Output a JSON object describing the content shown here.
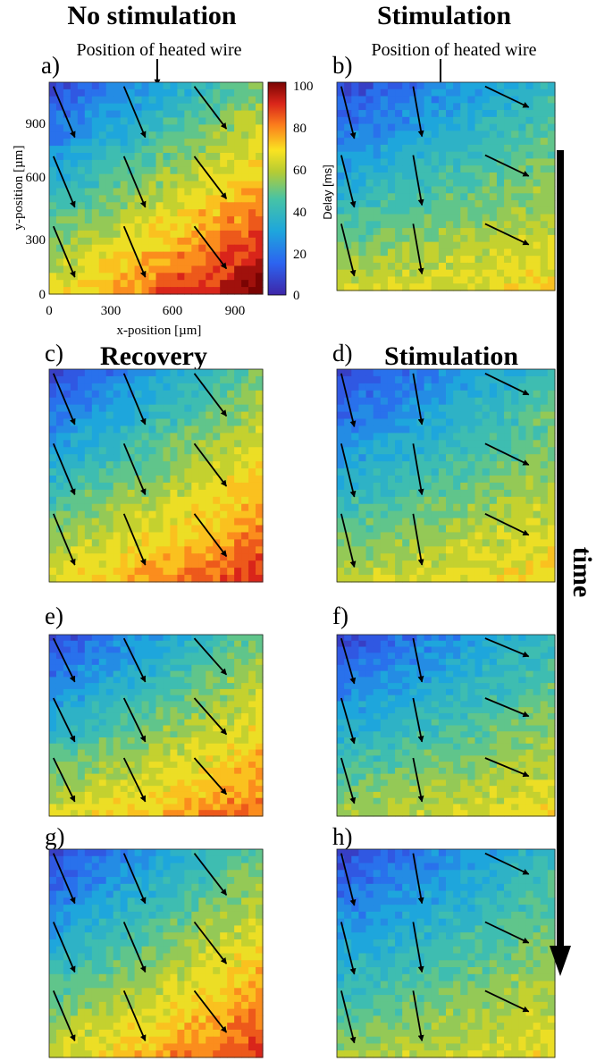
{
  "headers": {
    "no_stimulation": "No stimulation",
    "stimulation": "Stimulation"
  },
  "panel_labels": [
    "a)",
    "b)",
    "c)",
    "d)",
    "e)",
    "f)",
    "g)",
    "h)"
  ],
  "panel_titles": {
    "c": "Recovery",
    "d": "Stimulation"
  },
  "wire_label": "Position of heated wire",
  "time_label": "time",
  "colorbar_label": "Delay [ms]",
  "colors": {
    "low": "#3e26a8",
    "high": "#7a0403",
    "arrow": "#000000"
  },
  "chart_data": [
    {
      "type": "heatmap",
      "panel": "a",
      "condition": "No stimulation",
      "title": "",
      "xlabel": "x-position [µm]",
      "ylabel": "y-position [µm]",
      "xlim": [
        0,
        1100
      ],
      "ylim": [
        0,
        1100
      ],
      "xticks": [
        0,
        300,
        600,
        900
      ],
      "yticks": [
        0,
        300,
        600,
        900
      ],
      "clim": [
        0,
        100
      ],
      "colorbar_ticks": [
        0,
        20,
        40,
        60,
        80,
        100
      ],
      "grid": false,
      "delay_gradient_ms": {
        "top_left": 8,
        "top_right": 50,
        "bottom_left": 65,
        "bottom_right": 100
      },
      "wire_position_x": 520
    },
    {
      "type": "heatmap",
      "panel": "b",
      "condition": "Stimulation",
      "title": "",
      "clim": [
        0,
        100
      ],
      "delay_gradient_ms": {
        "top_left": 8,
        "top_right": 40,
        "bottom_left": 60,
        "bottom_right": 68
      }
    },
    {
      "type": "heatmap",
      "panel": "c",
      "condition": "Recovery",
      "title": "Recovery",
      "clim": [
        0,
        100
      ],
      "delay_gradient_ms": {
        "top_left": 8,
        "top_right": 50,
        "bottom_left": 65,
        "bottom_right": 88
      }
    },
    {
      "type": "heatmap",
      "panel": "d",
      "condition": "Stimulation",
      "title": "Stimulation",
      "clim": [
        0,
        100
      ],
      "delay_gradient_ms": {
        "top_left": 8,
        "top_right": 42,
        "bottom_left": 58,
        "bottom_right": 70
      }
    },
    {
      "type": "heatmap",
      "panel": "e",
      "condition": "No stimulation",
      "title": "",
      "clim": [
        0,
        100
      ],
      "delay_gradient_ms": {
        "top_left": 8,
        "top_right": 50,
        "bottom_left": 62,
        "bottom_right": 82
      }
    },
    {
      "type": "heatmap",
      "panel": "f",
      "condition": "Stimulation",
      "title": "",
      "clim": [
        0,
        100
      ],
      "delay_gradient_ms": {
        "top_left": 8,
        "top_right": 40,
        "bottom_left": 55,
        "bottom_right": 66
      }
    },
    {
      "type": "heatmap",
      "panel": "g",
      "condition": "No stimulation",
      "title": "",
      "clim": [
        0,
        100
      ],
      "delay_gradient_ms": {
        "top_left": 8,
        "top_right": 48,
        "bottom_left": 62,
        "bottom_right": 88
      }
    },
    {
      "type": "heatmap",
      "panel": "h",
      "condition": "Stimulation",
      "title": "",
      "clim": [
        0,
        100
      ],
      "delay_gradient_ms": {
        "top_left": 8,
        "top_right": 40,
        "bottom_left": 55,
        "bottom_right": 66
      }
    }
  ]
}
